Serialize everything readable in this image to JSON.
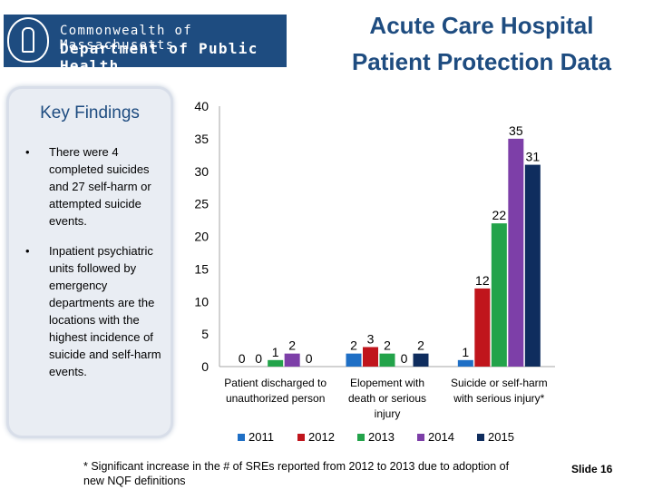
{
  "header": {
    "logo_line1": "Commonwealth of Massachusetts",
    "logo_line2": "Department of Public Health",
    "title_line1": "Acute Care Hospital",
    "title_line2": "Patient Protection Data"
  },
  "key_findings": {
    "title": "Key Findings",
    "bullets": [
      "There were 4 completed suicides and 27 self-harm or attempted suicide events.",
      "Inpatient psychiatric units followed by emergency departments are the locations with the highest incidence of suicide and self-harm events."
    ]
  },
  "footnote": "* Significant increase in the # of SREs reported from 2012 to 2013 due to adoption of new NQF definitions",
  "slide_label": "Slide 16",
  "chart_data": {
    "type": "bar",
    "categories": [
      "Patient discharged to unauthorized person",
      "Elopement with death or serious injury",
      "Suicide or self-harm with serious injury*"
    ],
    "category_lines": [
      [
        "Patient discharged to",
        "unauthorized person"
      ],
      [
        "Elopement with",
        "death or serious",
        "injury"
      ],
      [
        "Suicide or self-harm",
        "with serious injury*"
      ]
    ],
    "series": [
      {
        "name": "2011",
        "values": [
          0,
          2,
          1
        ],
        "color": "#1f6fc5"
      },
      {
        "name": "2012",
        "values": [
          0,
          3,
          12
        ],
        "color": "#c0151c"
      },
      {
        "name": "2013",
        "values": [
          1,
          2,
          22
        ],
        "color": "#23a34a"
      },
      {
        "name": "2014",
        "values": [
          2,
          0,
          35
        ],
        "color": "#7d3fa8"
      },
      {
        "name": "2015",
        "values": [
          0,
          2,
          31
        ],
        "color": "#0f2d5e"
      }
    ],
    "ylim": [
      0,
      40
    ],
    "yticks": [
      0,
      5,
      10,
      15,
      20,
      25,
      30,
      35,
      40
    ],
    "grid": false,
    "legend_position": "bottom"
  }
}
